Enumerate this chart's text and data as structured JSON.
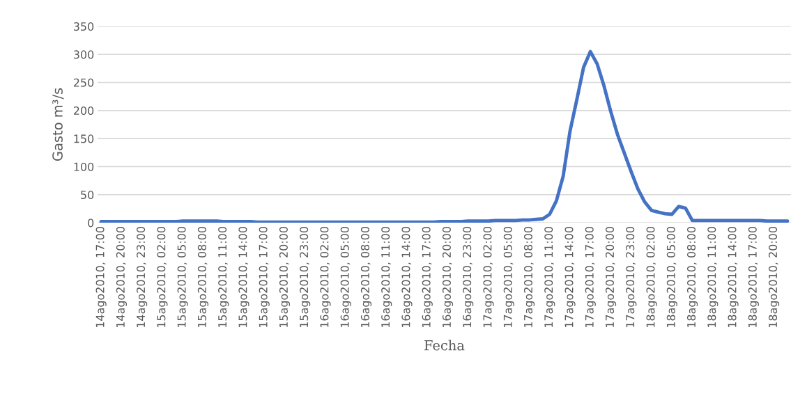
{
  "chart_data": {
    "type": "line",
    "xlabel": "Fecha",
    "ylabel": "Gasto m³/s",
    "categories": [
      "14ago2010, 17:00",
      null,
      null,
      "14ago2010, 20:00",
      null,
      null,
      "14ago2010, 23:00",
      null,
      null,
      "15ago2010, 02:00",
      null,
      null,
      "15ago2010, 05:00",
      null,
      null,
      "15ago2010, 08:00",
      null,
      null,
      "15ago2010, 11:00",
      null,
      null,
      "15ago2010, 14:00",
      null,
      null,
      "15ago2010, 17:00",
      null,
      null,
      "15ago2010, 20:00",
      null,
      null,
      "15ago2010, 23:00",
      null,
      null,
      "16ago2010, 02:00",
      null,
      null,
      "16ago2010, 05:00",
      null,
      null,
      "16ago2010, 08:00",
      null,
      null,
      "16ago2010, 11:00",
      null,
      null,
      "16ago2010, 14:00",
      null,
      null,
      "16ago2010, 17:00",
      null,
      null,
      "16ago2010, 20:00",
      null,
      null,
      "16ago2010, 23:00",
      null,
      null,
      "17ago2010, 02:00",
      null,
      null,
      "17ago2010, 05:00",
      null,
      null,
      "17ago2010, 08:00",
      null,
      null,
      "17ago2010, 11:00",
      null,
      null,
      "17ago2010, 14:00",
      null,
      null,
      "17ago2010, 17:00",
      null,
      null,
      "17ago2010, 20:00",
      null,
      null,
      "17ago2010, 23:00",
      null,
      null,
      "18ago2010, 02:00",
      null,
      null,
      "18ago2010, 05:00",
      null,
      null,
      "18ago2010, 08:00",
      null,
      null,
      "18ago2010, 11:00",
      null,
      null,
      "18ago2010, 14:00",
      null,
      null,
      "18ago2010, 17:00",
      null,
      null,
      "18ago2010, 20:00",
      null,
      null
    ],
    "series": [
      {
        "color": "#4472c4",
        "values": [
          2,
          2,
          2,
          2,
          2,
          2,
          2,
          2,
          2,
          2,
          2,
          2,
          3,
          3,
          3,
          3,
          3,
          3,
          2,
          2,
          2,
          2,
          2,
          1,
          1,
          1,
          1,
          1,
          1,
          1,
          1,
          1,
          1,
          1,
          1,
          1,
          1,
          1,
          1,
          1,
          1,
          1,
          1,
          1,
          1,
          1,
          1,
          1,
          1,
          1,
          2,
          2,
          2,
          2,
          3,
          3,
          3,
          3,
          4,
          4,
          4,
          4,
          5,
          5,
          6,
          7,
          15,
          39,
          83,
          163,
          219,
          277,
          305,
          283,
          244,
          198,
          157,
          124,
          91,
          60,
          37,
          22,
          19,
          16,
          15,
          29,
          26,
          4,
          4,
          4,
          4,
          4,
          4,
          4,
          4,
          4,
          4,
          4,
          3,
          3,
          3,
          3
        ]
      }
    ],
    "ylim": [
      0,
      350
    ],
    "yticks": [
      0,
      50,
      100,
      150,
      200,
      250,
      300,
      350
    ],
    "grid": "y",
    "marker": "none",
    "line_style": "solid"
  }
}
